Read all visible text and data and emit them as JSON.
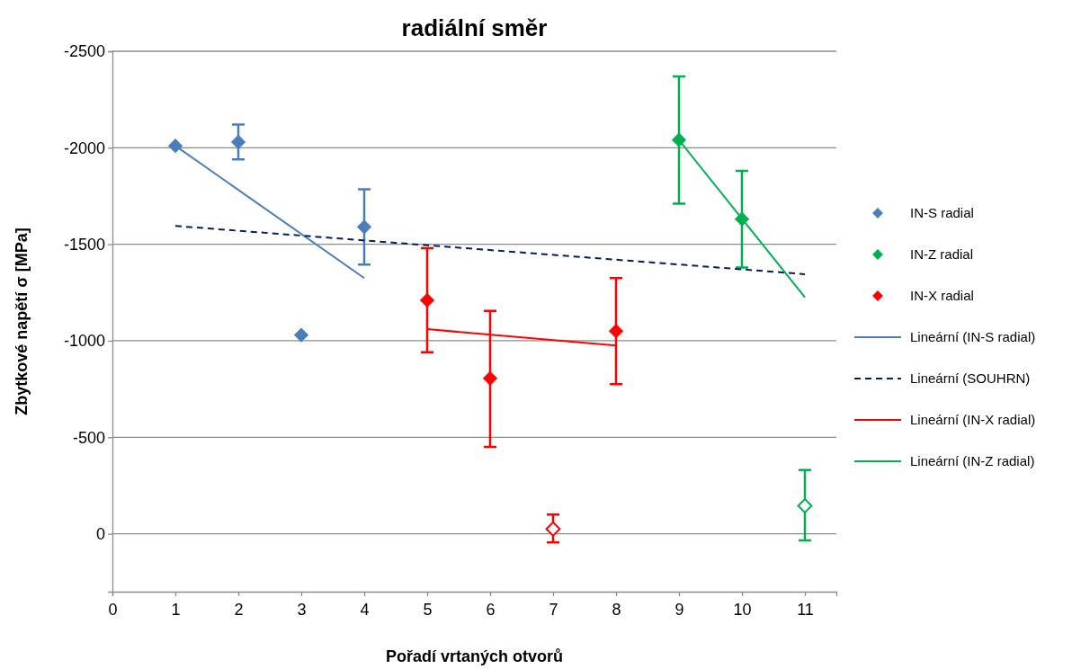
{
  "chart_data": {
    "type": "scatter",
    "title": "radiální směr",
    "xlabel": "Pořadí vrtaných otvorů",
    "ylabel": "Zbytkové napětí σ [MPa]",
    "xlim": [
      0,
      11.5
    ],
    "xticks": [
      0,
      1,
      2,
      3,
      4,
      5,
      6,
      7,
      8,
      9,
      10,
      11
    ],
    "ylim": [
      300,
      -2500
    ],
    "yticks": [
      0,
      -500,
      -1000,
      -1500,
      -2000,
      -2500
    ],
    "grid": "y",
    "legend": "right",
    "series": [
      {
        "name": "IN-S radial",
        "color": "#4a7ebb",
        "marker": "diamond",
        "x": [
          1,
          2,
          3,
          4
        ],
        "values": [
          -2010,
          -2030,
          -1030,
          -1590
        ],
        "errors": [
          null,
          [
            -1940,
            -2120
          ],
          null,
          [
            -1395,
            -1785
          ]
        ]
      },
      {
        "name": "IN-Z radial",
        "color": "#00b050",
        "marker": "diamond",
        "x": [
          9,
          10
        ],
        "values": [
          -2040,
          -1630
        ],
        "errors": [
          [
            -1710,
            -2370
          ],
          [
            -1380,
            -1880
          ]
        ]
      },
      {
        "name": "IN-X radial",
        "color": "#ff0000",
        "marker": "diamond",
        "x": [
          5,
          6,
          8
        ],
        "values": [
          -1210,
          -805,
          -1050
        ],
        "errors": [
          [
            -940,
            -1480
          ],
          [
            -450,
            -1155
          ],
          [
            -775,
            -1325
          ]
        ]
      },
      {
        "color": "#ff0000",
        "marker": "diamond",
        "x": [
          7
        ],
        "values": [
          -25
        ],
        "errors": [
          [
            45,
            -100
          ]
        ]
      },
      {
        "color": "#00b050",
        "marker": "diamond",
        "x": [
          11
        ],
        "values": [
          -145
        ],
        "errors": [
          [
            35,
            -330
          ]
        ]
      },
      {
        "name": "Lineární (IN-S radial)",
        "type": "line",
        "color": "#4a7ebb",
        "line_style": "solid",
        "marker": "none",
        "x": [
          1,
          4
        ],
        "values": [
          -2010,
          -1325
        ]
      },
      {
        "name": "Lineární (SOUHRN)",
        "type": "line",
        "color": "#002060",
        "line_style": "dashed",
        "marker": "none",
        "x": [
          1,
          11
        ],
        "values": [
          -1595,
          -1345
        ]
      },
      {
        "name": "Lineární (IN-X radial)",
        "type": "line",
        "color": "#ff0000",
        "line_style": "solid",
        "marker": "none",
        "x": [
          5,
          8
        ],
        "values": [
          -1060,
          -975
        ]
      },
      {
        "name": "Lineární (IN-Z radial)",
        "type": "line",
        "color": "#00b050",
        "line_style": "solid",
        "marker": "none",
        "x": [
          9,
          11
        ],
        "values": [
          -2040,
          -1225
        ]
      }
    ]
  }
}
